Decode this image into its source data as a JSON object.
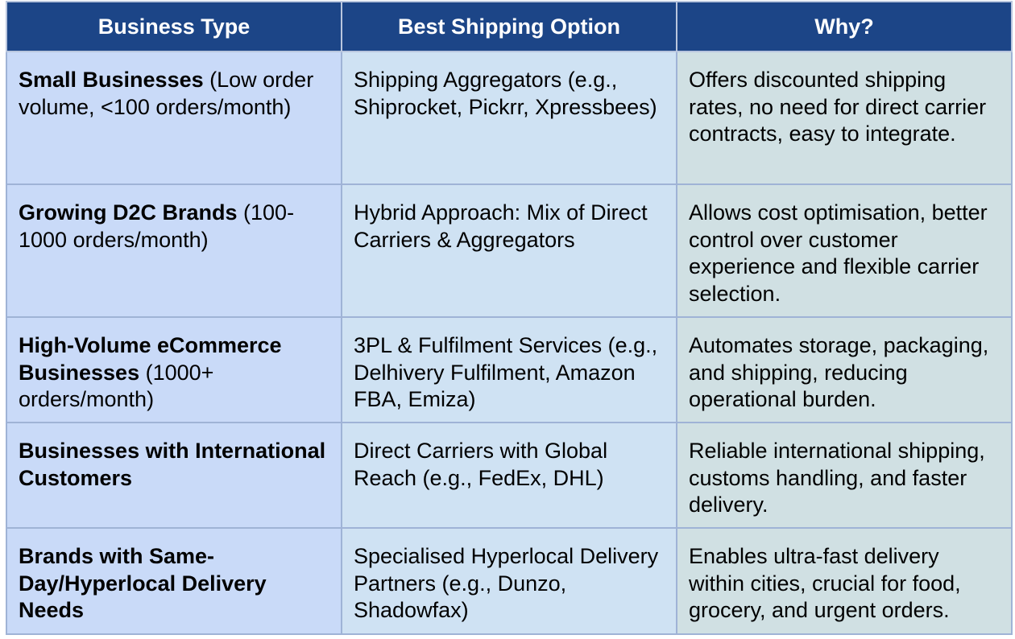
{
  "table": {
    "headers": [
      "Business Type",
      "Best Shipping Option",
      "Why?"
    ],
    "rows": [
      {
        "type_bold": "Small Businesses",
        "type_rest": " (Low order volume, <100 orders/month)",
        "option": "Shipping Aggregators (e.g., Shiprocket, Pickrr, Xpressbees)",
        "why": "Offers discounted shipping rates, no need for direct carrier contracts, easy to integrate."
      },
      {
        "type_bold": "Growing D2C Brands",
        "type_rest": " (100-1000 orders/month)",
        "option": "Hybrid Approach: Mix of Direct Carriers & Aggregators",
        "why": "Allows cost optimisation, better control over customer experience and flexible carrier selection."
      },
      {
        "type_bold": "High-Volume eCommerce Businesses",
        "type_rest": " (1000+ orders/month)",
        "option": "3PL & Fulfilment Services (e.g., Delhivery Fulfilment, Amazon FBA, Emiza)",
        "why": "Automates storage, packaging, and shipping, reducing operational burden."
      },
      {
        "type_bold": "Businesses with International Customers",
        "type_rest": "",
        "option": "Direct Carriers with Global Reach (e.g., FedEx, DHL)",
        "why": "Reliable international shipping, customs handling, and faster delivery."
      },
      {
        "type_bold": "Brands with Same-Day/Hyperlocal Delivery Needs",
        "type_rest": "",
        "option": "Specialised Hyperlocal Delivery Partners (e.g., Dunzo, Shadowfax)",
        "why": "Enables ultra-fast delivery within cities, crucial for food, grocery, and urgent orders."
      }
    ]
  }
}
